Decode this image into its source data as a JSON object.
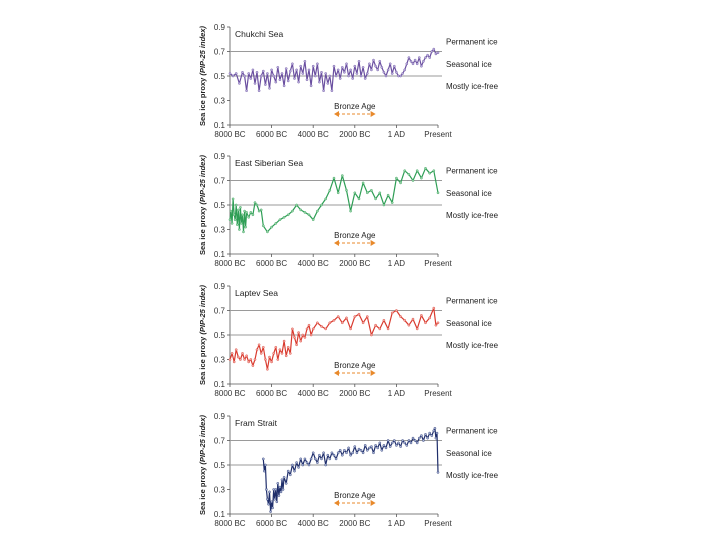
{
  "chart_data": [
    {
      "type": "line",
      "title": "Chukchi Sea",
      "ylabel": "Sea ice proxy",
      "ylabel_italic": "(PIP-25 index)",
      "ylim": [
        0.1,
        0.9
      ],
      "yticks": [
        "0.1",
        "0.3",
        "0.5",
        "0.7",
        "0.9"
      ],
      "xlim": [
        -8000,
        2000
      ],
      "xticks": [
        {
          "x": -8000,
          "label": "8000 BC"
        },
        {
          "x": -6000,
          "label": "6000 BC"
        },
        {
          "x": -4000,
          "label": "4000 BC"
        },
        {
          "x": -2000,
          "label": "2000 BC"
        },
        {
          "x": 0,
          "label": "1 AD"
        },
        {
          "x": 2000,
          "label": "Present"
        }
      ],
      "reference_lines": [
        0.7,
        0.5
      ],
      "zone_labels": [
        "Permanent ice",
        "Seasonal ice",
        "Mostly ice-free"
      ],
      "annotation": {
        "text": "Bronze Age",
        "from": -3000,
        "to": -1000,
        "color": "#E8892B"
      },
      "line_color": "#6A4FA0",
      "marker_color": "#B9AEDB",
      "series": [
        {
          "x": [
            -8000,
            -7850,
            -7700,
            -7550,
            -7400,
            -7300,
            -7200,
            -7100,
            -7000,
            -6900,
            -6800,
            -6700,
            -6600,
            -6500,
            -6400,
            -6300,
            -6200,
            -6100,
            -6000,
            -5900,
            -5800,
            -5700,
            -5600,
            -5500,
            -5400,
            -5300,
            -5200,
            -5100,
            -5000,
            -4900,
            -4800,
            -4700,
            -4600,
            -4500,
            -4400,
            -4300,
            -4200,
            -4100,
            -4000,
            -3900,
            -3800,
            -3700,
            -3600,
            -3500,
            -3400,
            -3300,
            -3200,
            -3100,
            -3000,
            -2900,
            -2800,
            -2700,
            -2600,
            -2500,
            -2400,
            -2300,
            -2200,
            -2100,
            -2000,
            -1900,
            -1800,
            -1700,
            -1600,
            -1500,
            -1400,
            -1300,
            -1200,
            -1100,
            -1000,
            -900,
            -800,
            -700,
            -600,
            -500,
            -400,
            -300,
            -200,
            -100,
            0,
            100,
            200,
            300,
            400,
            500,
            600,
            700,
            800,
            900,
            1000,
            1100,
            1200,
            1300,
            1400,
            1500,
            1600,
            1700,
            1800,
            1900,
            2000
          ],
          "y": [
            0.52,
            0.5,
            0.52,
            0.44,
            0.53,
            0.5,
            0.38,
            0.52,
            0.48,
            0.55,
            0.44,
            0.53,
            0.38,
            0.5,
            0.54,
            0.43,
            0.52,
            0.4,
            0.55,
            0.5,
            0.45,
            0.57,
            0.47,
            0.52,
            0.42,
            0.56,
            0.46,
            0.54,
            0.6,
            0.48,
            0.55,
            0.45,
            0.58,
            0.52,
            0.62,
            0.47,
            0.55,
            0.42,
            0.58,
            0.5,
            0.6,
            0.45,
            0.53,
            0.38,
            0.52,
            0.44,
            0.5,
            0.38,
            0.58,
            0.5,
            0.55,
            0.48,
            0.57,
            0.53,
            0.6,
            0.5,
            0.55,
            0.48,
            0.58,
            0.52,
            0.62,
            0.5,
            0.57,
            0.48,
            0.52,
            0.6,
            0.55,
            0.63,
            0.58,
            0.55,
            0.62,
            0.57,
            0.53,
            0.5,
            0.55,
            0.6,
            0.52,
            0.58,
            0.53,
            0.5,
            0.5,
            0.52,
            0.55,
            0.6,
            0.65,
            0.62,
            0.6,
            0.63,
            0.6,
            0.65,
            0.58,
            0.62,
            0.65,
            0.67,
            0.65,
            0.7,
            0.72,
            0.68,
            0.69
          ]
        }
      ]
    },
    {
      "type": "line",
      "title": "East Siberian Sea",
      "ylabel": "Sea ice proxy",
      "ylabel_italic": "(PIP-25 index)",
      "ylim": [
        0.1,
        0.9
      ],
      "yticks": [
        "0.1",
        "0.3",
        "0.5",
        "0.7",
        "0.9"
      ],
      "xlim": [
        -8000,
        2000
      ],
      "xticks": [
        {
          "x": -8000,
          "label": "8000 BC"
        },
        {
          "x": -6000,
          "label": "6000 BC"
        },
        {
          "x": -4000,
          "label": "4000 BC"
        },
        {
          "x": -2000,
          "label": "2000 BC"
        },
        {
          "x": 0,
          "label": "1 AD"
        },
        {
          "x": 2000,
          "label": "Present"
        }
      ],
      "reference_lines": [
        0.7,
        0.5
      ],
      "zone_labels": [
        "Permanent ice",
        "Seasonal ice",
        "Mostly ice-free"
      ],
      "annotation": {
        "text": "Bronze Age",
        "from": -3000,
        "to": -1000,
        "color": "#E8892B"
      },
      "line_color": "#2E9E55",
      "marker_color": "#9AD3A8",
      "series": [
        {
          "x": [
            -8000,
            -7950,
            -7900,
            -7850,
            -7800,
            -7750,
            -7700,
            -7650,
            -7600,
            -7550,
            -7500,
            -7450,
            -7400,
            -7350,
            -7300,
            -7250,
            -7200,
            -7100,
            -7000,
            -6900,
            -6800,
            -6700,
            -6600,
            -6500,
            -6400,
            -6200,
            -6000,
            -5800,
            -5600,
            -5400,
            -5200,
            -5000,
            -4800,
            -4600,
            -4400,
            -4200,
            -4000,
            -3800,
            -3600,
            -3400,
            -3200,
            -3000,
            -2800,
            -2600,
            -2400,
            -2200,
            -2000,
            -1800,
            -1600,
            -1400,
            -1200,
            -1000,
            -800,
            -600,
            -400,
            -200,
            0,
            200,
            400,
            600,
            800,
            1000,
            1200,
            1400,
            1600,
            1800,
            2000
          ],
          "y": [
            0.38,
            0.45,
            0.35,
            0.55,
            0.42,
            0.38,
            0.5,
            0.34,
            0.46,
            0.3,
            0.48,
            0.35,
            0.42,
            0.28,
            0.45,
            0.32,
            0.44,
            0.4,
            0.44,
            0.42,
            0.52,
            0.5,
            0.45,
            0.46,
            0.33,
            0.28,
            0.32,
            0.35,
            0.38,
            0.4,
            0.42,
            0.45,
            0.5,
            0.46,
            0.44,
            0.42,
            0.38,
            0.45,
            0.5,
            0.55,
            0.62,
            0.72,
            0.6,
            0.74,
            0.62,
            0.45,
            0.6,
            0.55,
            0.68,
            0.6,
            0.62,
            0.55,
            0.6,
            0.5,
            0.58,
            0.52,
            0.72,
            0.68,
            0.78,
            0.75,
            0.7,
            0.78,
            0.72,
            0.8,
            0.76,
            0.78,
            0.6
          ]
        }
      ]
    },
    {
      "type": "line",
      "title": "Laptev Sea",
      "ylabel": "Sea ice proxy",
      "ylabel_italic": "(PIP-25 index)",
      "ylim": [
        0.1,
        0.9
      ],
      "yticks": [
        "0.1",
        "0.3",
        "0.5",
        "0.7",
        "0.9"
      ],
      "xlim": [
        -8000,
        2000
      ],
      "xticks": [
        {
          "x": -8000,
          "label": "8000 BC"
        },
        {
          "x": -6000,
          "label": "6000 BC"
        },
        {
          "x": -4000,
          "label": "4000 BC"
        },
        {
          "x": -2000,
          "label": "2000 BC"
        },
        {
          "x": 0,
          "label": "1 AD"
        },
        {
          "x": 2000,
          "label": "Present"
        }
      ],
      "reference_lines": [
        0.7,
        0.5
      ],
      "zone_labels": [
        "Permanent ice",
        "Seasonal ice",
        "Mostly ice-free"
      ],
      "annotation": {
        "text": "Bronze Age",
        "from": -3000,
        "to": -1000,
        "color": "#E8892B"
      },
      "line_color": "#D93A2E",
      "marker_color": "#F2A9A2",
      "series": [
        {
          "x": [
            -8000,
            -7900,
            -7800,
            -7700,
            -7600,
            -7500,
            -7400,
            -7300,
            -7200,
            -7100,
            -7000,
            -6900,
            -6800,
            -6700,
            -6600,
            -6500,
            -6400,
            -6300,
            -6200,
            -6100,
            -6000,
            -5900,
            -5800,
            -5700,
            -5600,
            -5500,
            -5400,
            -5300,
            -5200,
            -5100,
            -5000,
            -4900,
            -4800,
            -4700,
            -4600,
            -4500,
            -4400,
            -4300,
            -4200,
            -4100,
            -4000,
            -3800,
            -3600,
            -3400,
            -3200,
            -3000,
            -2800,
            -2600,
            -2400,
            -2200,
            -2000,
            -1800,
            -1600,
            -1400,
            -1200,
            -1000,
            -800,
            -600,
            -400,
            -200,
            0,
            200,
            400,
            600,
            800,
            1000,
            1200,
            1400,
            1600,
            1800,
            1900,
            2000
          ],
          "y": [
            0.3,
            0.35,
            0.28,
            0.38,
            0.32,
            0.3,
            0.35,
            0.3,
            0.33,
            0.28,
            0.3,
            0.25,
            0.3,
            0.38,
            0.42,
            0.35,
            0.4,
            0.3,
            0.22,
            0.32,
            0.28,
            0.35,
            0.4,
            0.3,
            0.38,
            0.35,
            0.45,
            0.33,
            0.4,
            0.35,
            0.55,
            0.48,
            0.42,
            0.52,
            0.45,
            0.5,
            0.48,
            0.55,
            0.58,
            0.5,
            0.55,
            0.6,
            0.57,
            0.55,
            0.6,
            0.62,
            0.65,
            0.6,
            0.64,
            0.55,
            0.65,
            0.67,
            0.6,
            0.65,
            0.5,
            0.58,
            0.55,
            0.62,
            0.55,
            0.68,
            0.7,
            0.65,
            0.62,
            0.58,
            0.63,
            0.55,
            0.66,
            0.6,
            0.64,
            0.72,
            0.58,
            0.6
          ]
        }
      ]
    },
    {
      "type": "line",
      "title": "Fram Strait",
      "ylabel": "Sea ice proxy",
      "ylabel_italic": "(PIP-25 index)",
      "ylim": [
        0.1,
        0.9
      ],
      "yticks": [
        "0.1",
        "0.3",
        "0.5",
        "0.7",
        "0.9"
      ],
      "xlim": [
        -8000,
        2000
      ],
      "xticks": [
        {
          "x": -8000,
          "label": "8000 BC"
        },
        {
          "x": -6000,
          "label": "6000 BC"
        },
        {
          "x": -4000,
          "label": "4000 BC"
        },
        {
          "x": -2000,
          "label": "2000 BC"
        },
        {
          "x": 0,
          "label": "1 AD"
        },
        {
          "x": 2000,
          "label": "Present"
        }
      ],
      "reference_lines": [
        0.7,
        0.5
      ],
      "zone_labels": [
        "Permanent ice",
        "Seasonal ice",
        "Mostly ice-free"
      ],
      "annotation": {
        "text": "Bronze Age",
        "from": -3000,
        "to": -1000,
        "color": "#E8892B"
      },
      "line_color": "#1F2E6B",
      "marker_color": "#A9B4D6",
      "series": [
        {
          "x": [
            -6400,
            -6350,
            -6300,
            -6250,
            -6200,
            -6150,
            -6100,
            -6050,
            -6000,
            -5950,
            -5900,
            -5850,
            -5800,
            -5750,
            -5700,
            -5650,
            -5600,
            -5550,
            -5500,
            -5450,
            -5400,
            -5300,
            -5200,
            -5100,
            -5000,
            -4900,
            -4800,
            -4700,
            -4600,
            -4500,
            -4400,
            -4300,
            -4200,
            -4100,
            -4000,
            -3900,
            -3800,
            -3700,
            -3600,
            -3500,
            -3400,
            -3300,
            -3200,
            -3100,
            -3000,
            -2900,
            -2800,
            -2700,
            -2600,
            -2500,
            -2400,
            -2300,
            -2200,
            -2100,
            -2000,
            -1900,
            -1800,
            -1700,
            -1600,
            -1500,
            -1400,
            -1300,
            -1200,
            -1100,
            -1000,
            -900,
            -800,
            -700,
            -600,
            -500,
            -400,
            -300,
            -200,
            -100,
            0,
            100,
            200,
            300,
            400,
            500,
            600,
            700,
            800,
            900,
            1000,
            1100,
            1200,
            1300,
            1400,
            1500,
            1600,
            1700,
            1800,
            1850,
            1900,
            1950,
            2000
          ],
          "y": [
            0.55,
            0.45,
            0.5,
            0.3,
            0.22,
            0.18,
            0.28,
            0.12,
            0.2,
            0.15,
            0.3,
            0.22,
            0.3,
            0.2,
            0.35,
            0.25,
            0.32,
            0.28,
            0.38,
            0.3,
            0.4,
            0.35,
            0.45,
            0.42,
            0.5,
            0.45,
            0.52,
            0.48,
            0.55,
            0.5,
            0.55,
            0.52,
            0.5,
            0.55,
            0.6,
            0.55,
            0.52,
            0.58,
            0.55,
            0.6,
            0.5,
            0.58,
            0.55,
            0.6,
            0.58,
            0.55,
            0.6,
            0.62,
            0.58,
            0.62,
            0.6,
            0.64,
            0.58,
            0.6,
            0.65,
            0.6,
            0.63,
            0.62,
            0.6,
            0.66,
            0.62,
            0.64,
            0.65,
            0.6,
            0.66,
            0.64,
            0.68,
            0.62,
            0.66,
            0.64,
            0.7,
            0.65,
            0.68,
            0.7,
            0.66,
            0.68,
            0.65,
            0.7,
            0.68,
            0.66,
            0.7,
            0.68,
            0.72,
            0.7,
            0.68,
            0.72,
            0.74,
            0.7,
            0.75,
            0.72,
            0.76,
            0.74,
            0.78,
            0.8,
            0.72,
            0.76,
            0.44
          ]
        }
      ]
    }
  ]
}
